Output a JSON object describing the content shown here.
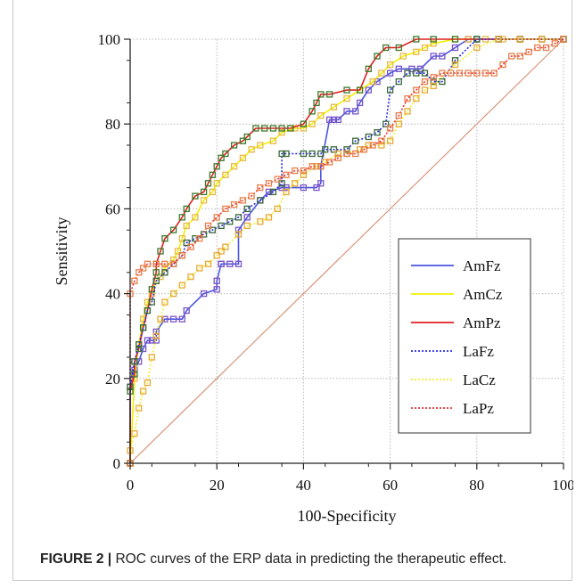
{
  "caption": {
    "label": "FIGURE 2 |",
    "text": " ROC curves of the ERP data in predicting the therapeutic effect."
  },
  "chart_data": {
    "type": "line",
    "xlabel": "100-Specificity",
    "ylabel": "Sensitivity",
    "xlim": [
      0,
      100
    ],
    "ylim": [
      0,
      100
    ],
    "xticks": [
      0,
      20,
      40,
      60,
      80,
      100
    ],
    "yticks": [
      0,
      20,
      40,
      60,
      80,
      100
    ],
    "grid": true,
    "legend_position": "center-right",
    "reference_line": {
      "x": [
        0,
        100
      ],
      "y": [
        0,
        100
      ],
      "color": "#d9957a"
    },
    "series": [
      {
        "name": "AmFz",
        "color": "#4a55e0",
        "dash": false,
        "marker": "#7a55c8",
        "x": [
          0,
          0,
          1,
          2,
          3,
          4,
          5,
          6,
          6,
          8,
          10,
          12,
          13,
          17,
          20,
          20,
          21,
          21,
          23,
          25,
          25,
          27,
          30,
          32,
          35,
          36,
          40,
          43,
          44,
          44,
          46,
          47,
          48,
          50,
          52,
          53,
          55,
          57,
          60,
          62,
          65,
          67,
          70,
          72,
          75,
          78,
          80,
          85,
          90,
          100
        ],
        "y": [
          0,
          18,
          22,
          24,
          27,
          29,
          29,
          29,
          31,
          34,
          34,
          34,
          36,
          40,
          41,
          43,
          47,
          47,
          47,
          47,
          55,
          58,
          62,
          64,
          65,
          65,
          65,
          65,
          66,
          70,
          81,
          81,
          81,
          83,
          83,
          85,
          88,
          90,
          92,
          93,
          93,
          93,
          96,
          96,
          98,
          100,
          100,
          100,
          100,
          100
        ]
      },
      {
        "name": "AmCz",
        "color": "#f0f000",
        "dash": false,
        "marker": "#e8b84a",
        "x": [
          0,
          1,
          2,
          3,
          4,
          5,
          6,
          7,
          8,
          10,
          11,
          12,
          13,
          15,
          17,
          19,
          20,
          22,
          24,
          26,
          28,
          30,
          33,
          35,
          38,
          40,
          42,
          44,
          47,
          50,
          53,
          56,
          58,
          60,
          63,
          66,
          68,
          70,
          75,
          78,
          82,
          86,
          90,
          95,
          100
        ],
        "y": [
          0,
          20,
          28,
          34,
          38,
          40,
          43,
          44,
          46,
          48,
          50,
          53,
          56,
          58,
          62,
          64,
          66,
          68,
          70,
          72,
          74,
          75,
          76,
          78,
          79,
          79,
          80,
          82,
          84,
          86,
          88,
          90,
          92,
          94,
          96,
          97,
          98,
          99,
          100,
          100,
          100,
          100,
          100,
          100,
          100
        ]
      },
      {
        "name": "AmPz",
        "color": "#e02020",
        "dash": false,
        "marker": "#3a7a2a",
        "x": [
          0,
          0,
          1,
          1,
          2,
          3,
          4,
          5,
          6,
          6,
          7,
          8,
          10,
          12,
          13,
          15,
          17,
          18,
          19,
          20,
          21,
          22,
          24,
          26,
          27,
          29,
          31,
          33,
          35,
          37,
          40,
          42,
          43,
          44,
          46,
          50,
          53,
          55,
          57,
          59,
          62,
          66,
          70,
          75,
          80,
          85,
          90,
          95,
          100
        ],
        "y": [
          0,
          17,
          21,
          24,
          27,
          32,
          36,
          41,
          45,
          47,
          50,
          53,
          55,
          58,
          60,
          63,
          64,
          66,
          68,
          70,
          72,
          73,
          75,
          76,
          77,
          79,
          79,
          79,
          79,
          79,
          80,
          83,
          85,
          87,
          87,
          88,
          88,
          93,
          96,
          98,
          98,
          100,
          100,
          100,
          100,
          100,
          100,
          100,
          100
        ]
      },
      {
        "name": "LaFz",
        "color": "#2828e8",
        "dash": true,
        "marker": "#3a6a3a",
        "x": [
          0,
          0,
          1,
          2,
          3,
          4,
          5,
          6,
          8,
          10,
          12,
          13,
          15,
          17,
          19,
          21,
          23,
          25,
          27,
          30,
          33,
          35,
          35,
          36,
          40,
          42,
          44,
          45,
          47,
          50,
          52,
          55,
          57,
          59,
          60,
          62,
          64,
          66,
          68,
          70,
          72,
          75,
          80,
          85,
          90,
          100
        ],
        "y": [
          0,
          18,
          24,
          28,
          32,
          36,
          38,
          43,
          45,
          47,
          49,
          52,
          53,
          54,
          55,
          56,
          57,
          58,
          60,
          62,
          64,
          66,
          73,
          73,
          73,
          73,
          73,
          74,
          74,
          74,
          76,
          77,
          78,
          80,
          88,
          90,
          92,
          92,
          92,
          90,
          90,
          95,
          100,
          100,
          100,
          100
        ]
      },
      {
        "name": "LaCz",
        "color": "#f0f030",
        "dash": true,
        "marker": "#e8a838",
        "x": [
          0,
          0,
          1,
          2,
          3,
          4,
          5,
          6,
          7,
          8,
          10,
          12,
          14,
          16,
          18,
          20,
          21,
          22,
          25,
          27,
          30,
          32,
          34,
          36,
          38,
          40,
          43,
          45,
          48,
          50,
          53,
          55,
          58,
          60,
          62,
          64,
          66,
          68,
          70,
          75,
          80,
          85,
          90,
          95,
          100
        ],
        "y": [
          0,
          3,
          7,
          13,
          17,
          19,
          25,
          30,
          34,
          38,
          40,
          42,
          44,
          46,
          47,
          49,
          50,
          51,
          54,
          56,
          57,
          58,
          60,
          64,
          66,
          68,
          70,
          71,
          73,
          73,
          74,
          75,
          75,
          76,
          80,
          83,
          86,
          88,
          89,
          94,
          98,
          100,
          100,
          100,
          100
        ]
      },
      {
        "name": "LaPz",
        "color": "#e83030",
        "dash": true,
        "marker": "#e8804a",
        "x": [
          0,
          0,
          1,
          2,
          3,
          4,
          6,
          8,
          10,
          12,
          14,
          16,
          18,
          20,
          22,
          24,
          26,
          28,
          30,
          32,
          34,
          36,
          38,
          40,
          42,
          44,
          46,
          48,
          50,
          52,
          54,
          56,
          58,
          60,
          62,
          64,
          66,
          68,
          70,
          72,
          74,
          76,
          78,
          80,
          82,
          84,
          86,
          88,
          90,
          92,
          94,
          96,
          98,
          100
        ],
        "y": [
          0,
          40,
          43,
          45,
          46,
          47,
          47,
          47,
          47,
          49,
          51,
          53,
          56,
          58,
          60,
          61,
          62,
          63,
          65,
          66,
          67,
          68,
          69,
          69,
          70,
          70,
          71,
          72,
          73,
          73,
          74,
          75,
          76,
          79,
          82,
          86,
          88,
          90,
          91,
          92,
          92,
          92,
          92,
          92,
          92,
          92,
          94,
          96,
          96,
          97,
          98,
          98,
          99,
          100
        ]
      }
    ]
  }
}
